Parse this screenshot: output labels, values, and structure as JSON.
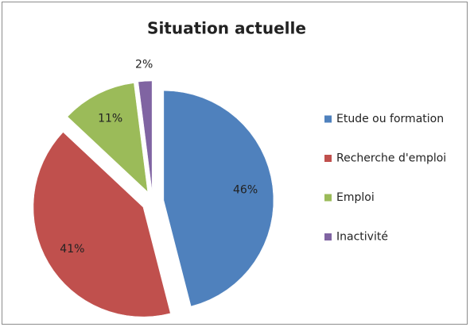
{
  "chart_data": {
    "type": "pie",
    "title": "Situation actuelle",
    "categories": [
      "Etude ou formation",
      "Recherche d'emploi",
      "Emploi",
      "Inactivité"
    ],
    "values": [
      46,
      41,
      11,
      2
    ],
    "value_labels": [
      "46%",
      "41%",
      "11%",
      "2%"
    ],
    "colors": [
      "#4f81bd",
      "#c0504d",
      "#9bbb59",
      "#8064a2"
    ],
    "exploded": true,
    "legend": "right"
  }
}
